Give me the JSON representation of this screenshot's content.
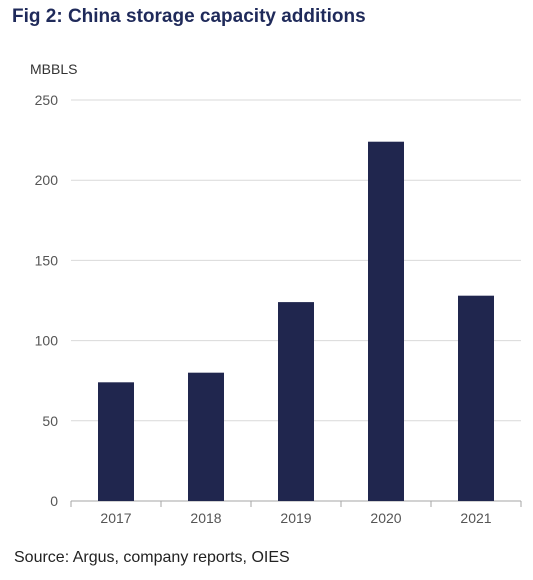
{
  "title": "Fig 2: China storage capacity additions",
  "unit_label": "MBBLS",
  "source": "Source: Argus, company reports, OIES",
  "colors": {
    "bar": "#20264e",
    "grid": "#d9d9d9",
    "axis": "#a6a6a6",
    "title": "#1f2a5a"
  },
  "chart_data": {
    "type": "bar",
    "categories": [
      "2017",
      "2018",
      "2019",
      "2020",
      "2021"
    ],
    "values": [
      74,
      80,
      124,
      224,
      128
    ],
    "ylabel": "MBBLS",
    "ylim": [
      0,
      250
    ],
    "yticks": [
      0,
      50,
      100,
      150,
      200,
      250
    ],
    "grid": true
  }
}
